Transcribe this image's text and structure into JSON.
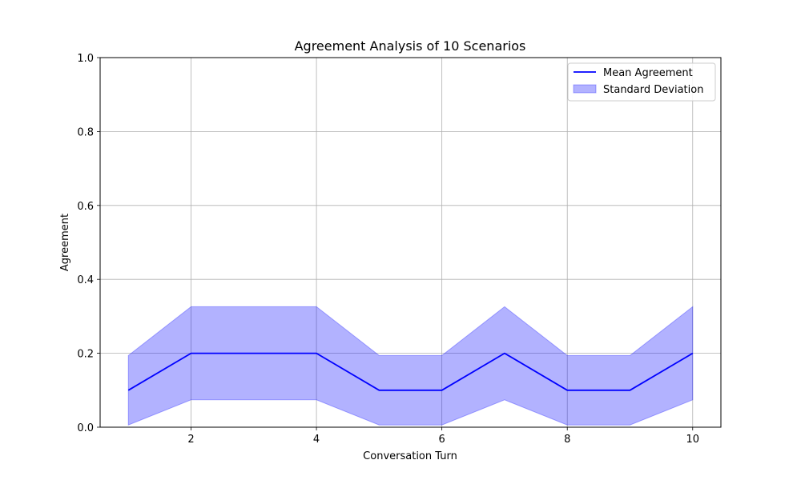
{
  "chart_data": {
    "type": "line",
    "title": "Agreement Analysis of 10 Scenarios",
    "xlabel": "Conversation Turn",
    "ylabel": "Agreement",
    "x": [
      1,
      2,
      3,
      4,
      5,
      6,
      7,
      8,
      9,
      10
    ],
    "series": [
      {
        "name": "Mean Agreement",
        "values": [
          0.1,
          0.2,
          0.2,
          0.2,
          0.1,
          0.1,
          0.2,
          0.1,
          0.1,
          0.2
        ],
        "color": "#0000ff"
      }
    ],
    "band": {
      "name": "Standard Deviation",
      "lower": [
        0.006,
        0.074,
        0.074,
        0.074,
        0.006,
        0.006,
        0.074,
        0.006,
        0.006,
        0.074
      ],
      "upper": [
        0.194,
        0.326,
        0.326,
        0.326,
        0.194,
        0.194,
        0.326,
        0.194,
        0.194,
        0.326
      ],
      "color": "#0000ff"
    },
    "xlim": [
      0.55,
      10.45
    ],
    "ylim": [
      0,
      1
    ],
    "xticks": [
      "2",
      "4",
      "6",
      "8",
      "10"
    ],
    "yticks": [
      "0.0",
      "0.2",
      "0.4",
      "0.6",
      "0.8",
      "1.0"
    ],
    "grid": true,
    "legend_position": "top-right"
  }
}
